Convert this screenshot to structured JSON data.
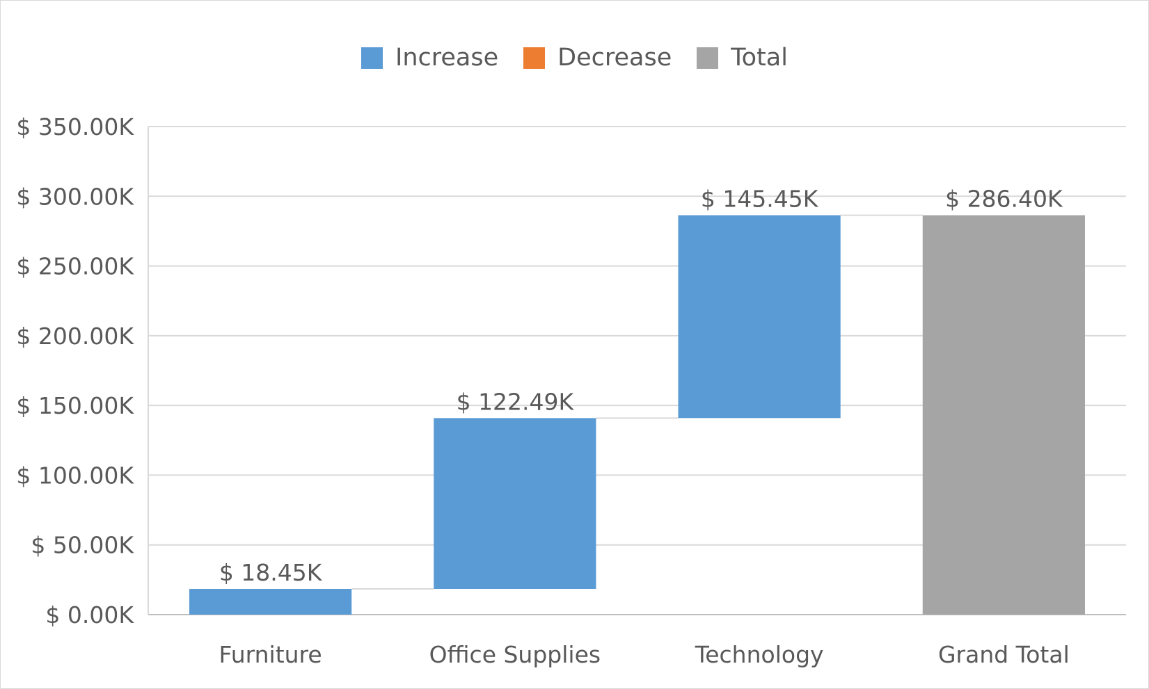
{
  "chart_data": {
    "type": "bar",
    "subtype": "waterfall",
    "categories": [
      "Furniture",
      "Office Supplies",
      "Technology",
      "Grand Total"
    ],
    "series": [
      {
        "name": "Increase",
        "values": [
          18.45,
          122.49,
          145.45,
          null
        ],
        "labels": [
          "$ 18.45K",
          "$ 122.49K",
          "$ 145.45K",
          ""
        ]
      },
      {
        "name": "Decrease",
        "values": [
          null,
          null,
          null,
          null
        ],
        "labels": [
          "",
          "",
          "",
          ""
        ]
      },
      {
        "name": "Total",
        "values": [
          null,
          null,
          null,
          286.4
        ],
        "labels": [
          "",
          "",
          "",
          "$ 286.40K"
        ]
      }
    ],
    "running_start": [
      0,
      18.45,
      140.94,
      0
    ],
    "running_end": [
      18.45,
      140.94,
      286.4,
      286.4
    ],
    "ylim": [
      0,
      350
    ],
    "yticks": [
      0,
      50,
      100,
      150,
      200,
      250,
      300,
      350
    ],
    "ytick_labels": [
      "$ 0.00K",
      "$ 50.00K",
      "$ 100.00K",
      "$ 150.00K",
      "$ 200.00K",
      "$ 250.00K",
      "$ 300.00K",
      "$ 350.00K"
    ],
    "xlabel": "",
    "ylabel": "",
    "grid": true,
    "legend_position": "top",
    "colors": {
      "Increase": "#5b9bd5",
      "Decrease": "#ed7d31",
      "Total": "#a5a5a5"
    }
  },
  "legend": [
    {
      "name": "Increase",
      "color": "#5b9bd5"
    },
    {
      "name": "Decrease",
      "color": "#ed7d31"
    },
    {
      "name": "Total",
      "color": "#a5a5a5"
    }
  ]
}
